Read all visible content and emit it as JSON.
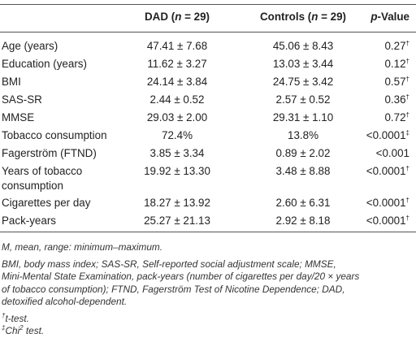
{
  "table": {
    "headers": {
      "col1_pre": "DAD (",
      "col1_n": "n",
      "col1_post": " = 29)",
      "col2_pre": "Controls (",
      "col2_n": "n",
      "col2_post": " = 29)",
      "col3_p": "p",
      "col3_post": "-Value"
    },
    "rows": [
      {
        "label": "Age (years)",
        "dad": "47.41 ± 7.68",
        "controls": "45.06 ± 8.43",
        "p": "0.27",
        "mark": "†"
      },
      {
        "label": "Education (years)",
        "dad": "11.62 ± 3.27",
        "controls": "13.03 ± 3.44",
        "p": "0.12",
        "mark": "†"
      },
      {
        "label": "BMI",
        "dad": "24.14 ± 3.84",
        "controls": "24.75 ± 3.42",
        "p": "0.57",
        "mark": "†"
      },
      {
        "label": "SAS-SR",
        "dad": "2.44 ± 0.52",
        "controls": "2.57 ± 0.52",
        "p": "0.36",
        "mark": "†"
      },
      {
        "label": "MMSE",
        "dad": "29.03 ± 2.00",
        "controls": "29.31 ± 1.10",
        "p": "0.72",
        "mark": "†"
      },
      {
        "label": "Tobacco consumption",
        "dad": "72.4%",
        "controls": "13.8%",
        "p": "<0.0001",
        "mark": "‡"
      },
      {
        "label": "Fagerström (FTND)",
        "dad": "3.85 ± 3.34",
        "controls": "0.89 ± 2.02",
        "p": "<0.001",
        "mark": ""
      },
      {
        "label": "Years of tobacco",
        "label2": "consumption",
        "dad": "19.92 ± 13.30",
        "controls": "3.48 ± 8.88",
        "p": "<0.0001",
        "mark": "†"
      },
      {
        "label": "Cigarettes per day",
        "dad": "18.27 ± 13.92",
        "controls": "2.60 ± 6.31",
        "p": "<0.0001",
        "mark": "†"
      },
      {
        "label": "Pack-years",
        "dad": "25.27 ± 21.13",
        "controls": "2.92 ± 8.18",
        "p": "<0.0001",
        "mark": "†"
      }
    ]
  },
  "notes": {
    "line1": "M, mean, range: minimum–maximum.",
    "line2": "BMI, body mass index; SAS-SR, Self-reported social adjustment scale; MMSE,",
    "line3": "Mini-Mental State Examination, pack-years (number of cigarettes per day/20 × years",
    "line4": "of tobacco consumption); FTND, Fagerström Test of Nicotine Dependence; DAD,",
    "line5": "detoxified alcohol-dependent.",
    "dagger_mark": "†",
    "dagger_text": "t-test.",
    "ddagger_mark": "‡",
    "ddagger_text": "Chi",
    "ddagger_sup": "2",
    "ddagger_end": " test."
  }
}
